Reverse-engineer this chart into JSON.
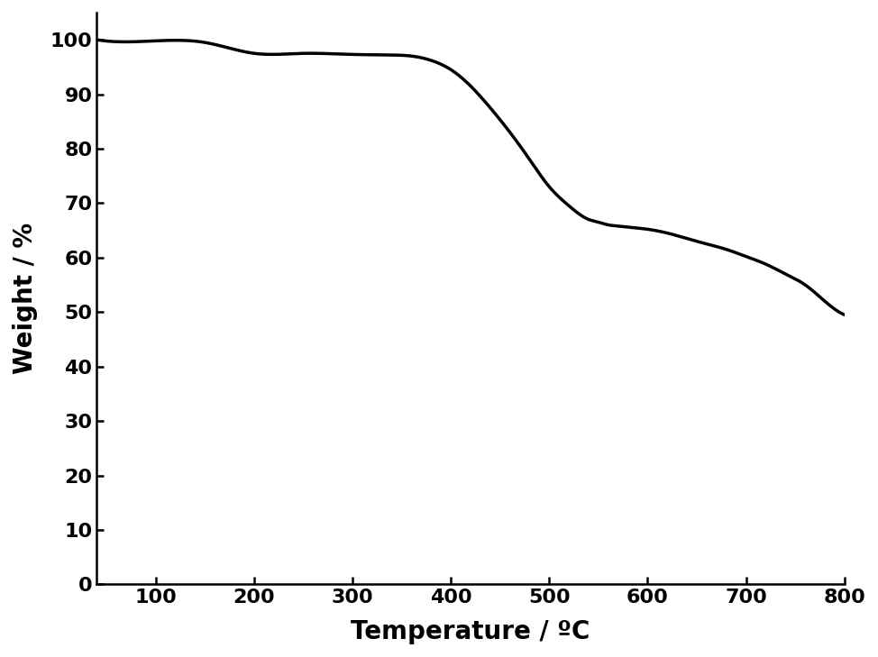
{
  "x": [
    40,
    100,
    150,
    200,
    250,
    300,
    340,
    360,
    380,
    400,
    420,
    440,
    460,
    480,
    500,
    520,
    540,
    550,
    560,
    570,
    580,
    600,
    620,
    640,
    660,
    680,
    700,
    720,
    740,
    760,
    780,
    800
  ],
  "y": [
    100.0,
    99.8,
    99.5,
    97.5,
    97.5,
    97.3,
    97.2,
    97.0,
    96.2,
    94.5,
    91.5,
    87.5,
    83.0,
    78.0,
    73.0,
    69.5,
    67.0,
    66.5,
    66.0,
    65.8,
    65.6,
    65.2,
    64.5,
    63.5,
    62.5,
    61.5,
    60.2,
    58.8,
    57.0,
    55.0,
    52.0,
    49.5
  ],
  "xlabel": "Temperature / ºC",
  "ylabel": "Weight / %",
  "xlim": [
    40,
    800
  ],
  "ylim": [
    0,
    105
  ],
  "xticks": [
    100,
    200,
    300,
    400,
    500,
    600,
    700,
    800
  ],
  "yticks": [
    0,
    10,
    20,
    30,
    40,
    50,
    60,
    70,
    80,
    90,
    100
  ],
  "line_color": "#000000",
  "line_width": 2.5,
  "background_color": "#ffffff",
  "xlabel_fontsize": 20,
  "ylabel_fontsize": 20,
  "tick_fontsize": 16,
  "axis_linewidth": 1.8
}
